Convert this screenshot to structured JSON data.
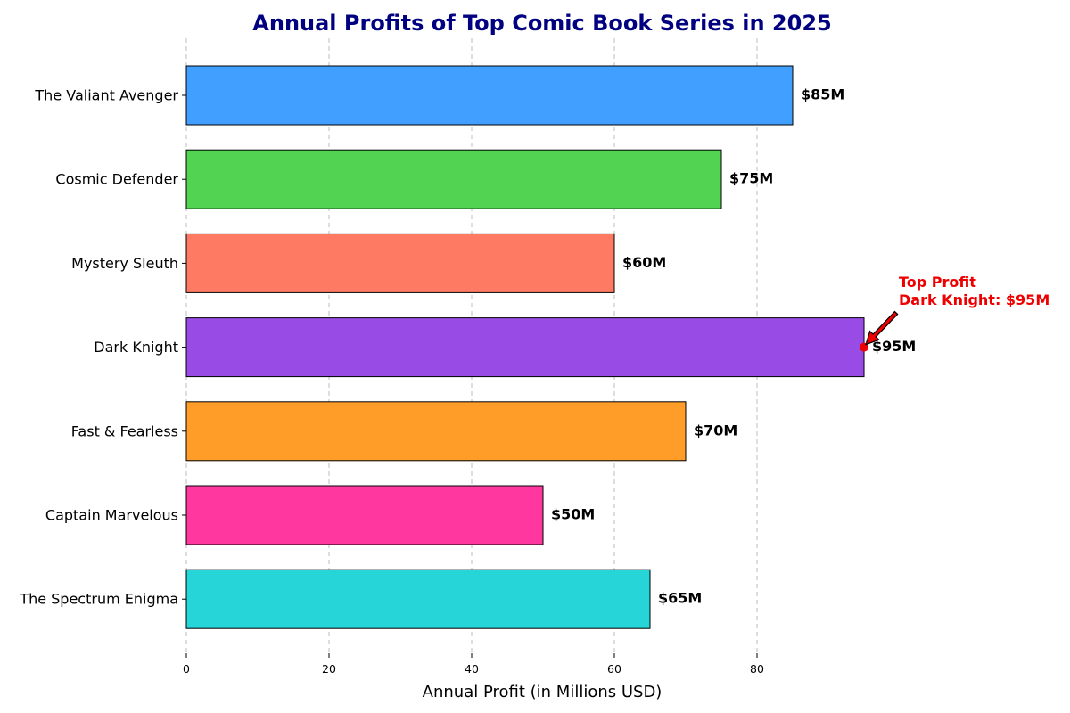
{
  "chart_data": {
    "type": "bar",
    "orientation": "horizontal",
    "title": "Annual Profits of Top Comic Book Series in 2025",
    "title_color": "#000080",
    "xlabel": "Annual Profit (in Millions USD)",
    "ylabel": "",
    "xlim": [
      0,
      100
    ],
    "xticks": [
      0,
      20,
      40,
      60,
      80
    ],
    "grid": {
      "x": true,
      "y": false,
      "style": "dashed"
    },
    "categories": [
      "The Valiant Avenger",
      "Cosmic Defender",
      "Mystery Sleuth",
      "Dark Knight",
      "Fast & Fearless",
      "Captain Marvelous",
      "The Spectrum Enigma"
    ],
    "values": [
      85,
      75,
      60,
      95,
      70,
      50,
      65
    ],
    "value_labels": [
      "$85M",
      "$75M",
      "$60M",
      "$95M",
      "$70M",
      "$50M",
      "$65M"
    ],
    "colors": [
      "#409FFF",
      "#52D452",
      "#FF7A63",
      "#984BE5",
      "#FF9D28",
      "#FF379F",
      "#26D5D8"
    ],
    "annotation": {
      "lines": [
        "Top Profit",
        "Dark Knight: $95M"
      ],
      "target_category": "Dark Knight",
      "target_value": 95,
      "color": "#EE0000"
    }
  }
}
